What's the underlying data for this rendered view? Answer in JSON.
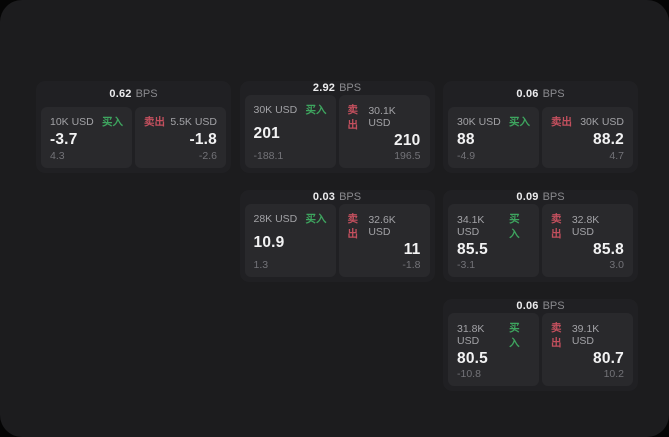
{
  "labels": {
    "bps_unit": "BPS",
    "buy": "买入",
    "sell": "卖出"
  },
  "colors": {
    "buy": "#3ea55f",
    "sell": "#c4505e",
    "page_bg": "#050505",
    "panel_bg": "#1c1c1e",
    "card_bg": "#202023",
    "tile_bg": "#29292c"
  },
  "cards": [
    {
      "row": 1,
      "col": 1,
      "bps": "0.62",
      "buy": {
        "amount": "10K USD",
        "value": "-3.7",
        "sub": "4.3"
      },
      "sell": {
        "amount": "5.5K USD",
        "value": "-1.8",
        "sub": "-2.6"
      }
    },
    {
      "row": 1,
      "col": 2,
      "bps": "2.92",
      "buy": {
        "amount": "30K USD",
        "value": "201",
        "sub": "-188.1"
      },
      "sell": {
        "amount": "30.1K USD",
        "value": "210",
        "sub": "196.5"
      }
    },
    {
      "row": 1,
      "col": 3,
      "bps": "0.06",
      "buy": {
        "amount": "30K USD",
        "value": "88",
        "sub": "-4.9"
      },
      "sell": {
        "amount": "30K USD",
        "value": "88.2",
        "sub": "4.7"
      }
    },
    {
      "row": 2,
      "col": 2,
      "bps": "0.03",
      "buy": {
        "amount": "28K USD",
        "value": "10.9",
        "sub": "1.3"
      },
      "sell": {
        "amount": "32.6K USD",
        "value": "11",
        "sub": "-1.8"
      }
    },
    {
      "row": 2,
      "col": 3,
      "bps": "0.09",
      "buy": {
        "amount": "34.1K USD",
        "value": "85.5",
        "sub": "-3.1"
      },
      "sell": {
        "amount": "32.8K USD",
        "value": "85.8",
        "sub": "3.0"
      }
    },
    {
      "row": 3,
      "col": 3,
      "bps": "0.06",
      "buy": {
        "amount": "31.8K USD",
        "value": "80.5",
        "sub": "-10.8"
      },
      "sell": {
        "amount": "39.1K USD",
        "value": "80.7",
        "sub": "10.2"
      }
    }
  ]
}
